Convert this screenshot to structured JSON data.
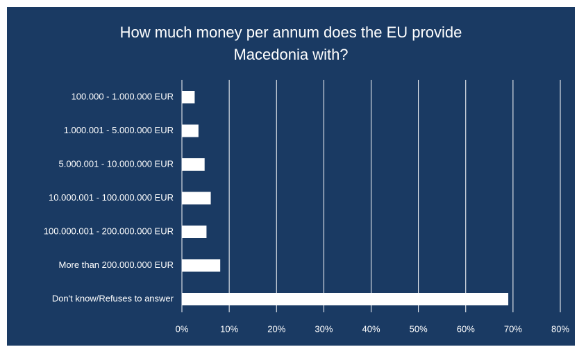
{
  "chart_data": {
    "type": "bar",
    "orientation": "horizontal",
    "title_lines": [
      "How much money per annum does the EU provide",
      "Macedonia with?"
    ],
    "categories": [
      "100.000 - 1.000.000 EUR",
      "1.000.001 - 5.000.000 EUR",
      "5.000.001 - 10.000.000 EUR",
      "10.000.001 - 100.000.000 EUR",
      "100.000.001 - 200.000.000 EUR",
      "More than 200.000.000 EUR",
      "Don't know/Refuses to answer"
    ],
    "values": [
      2.7,
      3.5,
      4.8,
      6.1,
      5.2,
      8.1,
      69.0
    ],
    "value_unit": "percent",
    "xlim": [
      0,
      80
    ],
    "x_ticks": [
      0,
      10,
      20,
      30,
      40,
      50,
      60,
      70,
      80
    ],
    "x_tick_labels": [
      "0%",
      "10%",
      "20%",
      "30%",
      "40%",
      "50%",
      "60%",
      "70%",
      "80%"
    ],
    "grid": "vertical",
    "legend": "none",
    "colors": {
      "background": "#1a3a63",
      "bar": "#ffffff",
      "text": "#ffffff",
      "gridline": "#ffffff"
    }
  }
}
